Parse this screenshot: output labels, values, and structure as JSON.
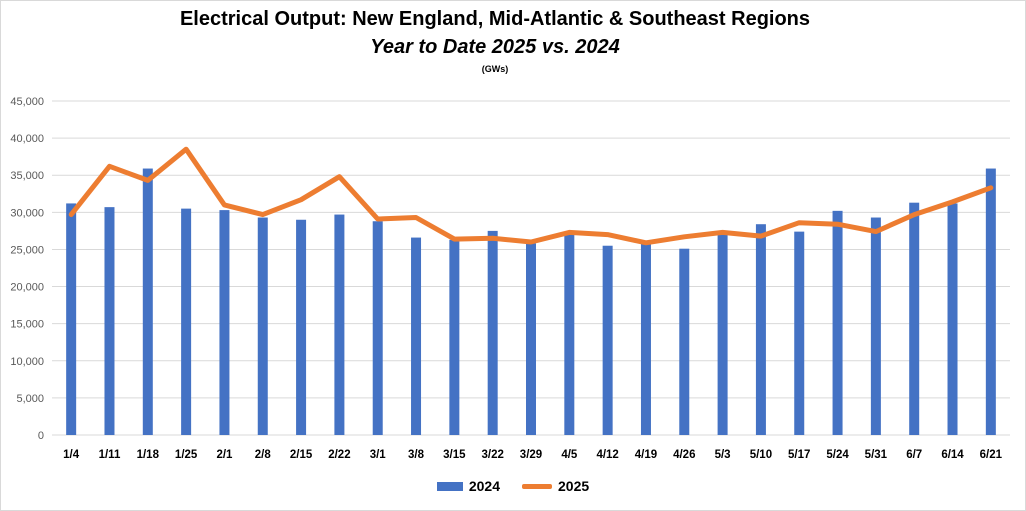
{
  "chart_data": {
    "type": "bar",
    "title": "Electrical Output:  New England, Mid-Atlantic & Southeast Regions",
    "subtitle": "Year to Date 2025 vs. 2024",
    "unit_label": "(GWs)",
    "categories": [
      "1/4",
      "1/11",
      "1/18",
      "1/25",
      "2/1",
      "2/8",
      "2/15",
      "2/22",
      "3/1",
      "3/8",
      "3/15",
      "3/22",
      "3/29",
      "4/5",
      "4/12",
      "4/19",
      "4/26",
      "5/3",
      "5/10",
      "5/17",
      "5/24",
      "5/31",
      "6/7",
      "6/14",
      "6/21"
    ],
    "ylim": [
      0,
      45000
    ],
    "yticks": [
      0,
      5000,
      10000,
      15000,
      20000,
      25000,
      30000,
      35000,
      40000,
      45000
    ],
    "ytick_labels": [
      "0",
      "5,000",
      "10,000",
      "15,000",
      "20,000",
      "25,000",
      "30,000",
      "35,000",
      "40,000",
      "45,000"
    ],
    "grid": true,
    "legend_position": "bottom",
    "series": [
      {
        "name": "2024",
        "type": "bar",
        "color": "#4472C4",
        "values": [
          31200,
          30700,
          35900,
          30500,
          30300,
          29300,
          29000,
          29700,
          28800,
          26600,
          26300,
          27500,
          25800,
          27100,
          25500,
          25900,
          25100,
          27000,
          28400,
          27400,
          30200,
          29300,
          31300,
          31200,
          35900
        ]
      },
      {
        "name": "2025",
        "type": "line",
        "color": "#ED7D31",
        "values": [
          29700,
          36200,
          34300,
          38500,
          31000,
          29700,
          31700,
          34800,
          29100,
          29300,
          26400,
          26500,
          26000,
          27300,
          27000,
          25900,
          26700,
          27300,
          26800,
          28600,
          28400,
          27400,
          29700,
          31400,
          33300
        ]
      }
    ]
  }
}
